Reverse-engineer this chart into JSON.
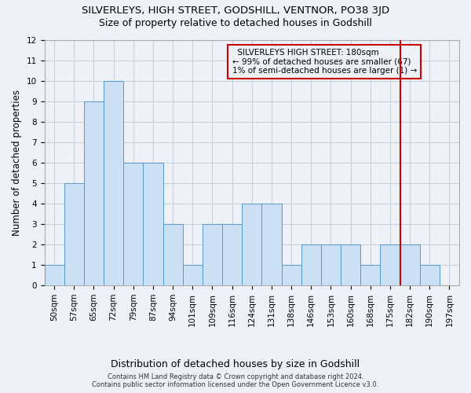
{
  "title": "SILVERLEYS, HIGH STREET, GODSHILL, VENTNOR, PO38 3JD",
  "subtitle": "Size of property relative to detached houses in Godshill",
  "xlabel": "Distribution of detached houses by size in Godshill",
  "ylabel": "Number of detached properties",
  "footer_line1": "Contains HM Land Registry data © Crown copyright and database right 2024.",
  "footer_line2": "Contains public sector information licensed under the Open Government Licence v3.0.",
  "bar_labels": [
    "50sqm",
    "57sqm",
    "65sqm",
    "72sqm",
    "79sqm",
    "87sqm",
    "94sqm",
    "101sqm",
    "109sqm",
    "116sqm",
    "124sqm",
    "131sqm",
    "138sqm",
    "146sqm",
    "153sqm",
    "160sqm",
    "168sqm",
    "175sqm",
    "182sqm",
    "190sqm",
    "197sqm"
  ],
  "bar_values": [
    1,
    5,
    9,
    10,
    6,
    6,
    3,
    1,
    3,
    3,
    4,
    4,
    1,
    2,
    2,
    2,
    1,
    2,
    2,
    1,
    0
  ],
  "bar_color": "#cce0f5",
  "bar_edge_color": "#5599cc",
  "grid_color": "#c8d0dc",
  "annotation_text": "  SILVERLEYS HIGH STREET: 180sqm  \n← 99% of detached houses are smaller (67)\n1% of semi-detached houses are larger (1) →",
  "annotation_box_color": "#cc0000",
  "vline_x_index": 18,
  "vline_color": "#cc0000",
  "ylim": [
    0,
    12
  ],
  "yticks": [
    0,
    1,
    2,
    3,
    4,
    5,
    6,
    7,
    8,
    9,
    10,
    11,
    12
  ],
  "background_color": "#eef2f8",
  "title_fontsize": 9.5,
  "subtitle_fontsize": 9,
  "xlabel_fontsize": 9,
  "ylabel_fontsize": 8.5,
  "tick_fontsize": 7.5,
  "annotation_fontsize": 7.5
}
